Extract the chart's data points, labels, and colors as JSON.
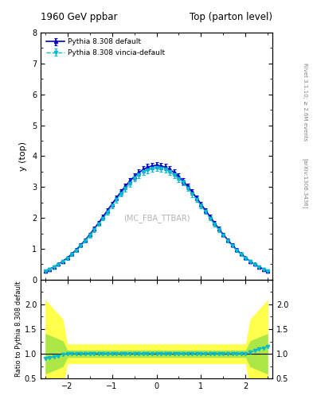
{
  "title_left": "1960 GeV ppbar",
  "title_right": "Top (parton level)",
  "xlabel": "",
  "ylabel_main": "y (top)",
  "ylabel_ratio": "Ratio to Pythia 8.308 default",
  "right_label_top": "Rivet 3.1.10; ≥ 2.6M events",
  "right_label_bottom": "[arXiv:1306.3436]",
  "watermark": "(MC_FBA_TTBAR)",
  "legend": [
    "Pythia 8.308 default",
    "Pythia 8.308 vincia-default"
  ],
  "xlim": [
    -2.6,
    2.6
  ],
  "ylim_main": [
    0,
    8
  ],
  "ylim_ratio": [
    0.5,
    2.5
  ],
  "yticks_main": [
    0,
    1,
    2,
    3,
    4,
    5,
    6,
    7,
    8
  ],
  "yticks_ratio": [
    0.5,
    1.0,
    1.5,
    2.0
  ],
  "color_default": "#0000cc",
  "color_vincia": "#00bbcc",
  "background": "#ffffff"
}
